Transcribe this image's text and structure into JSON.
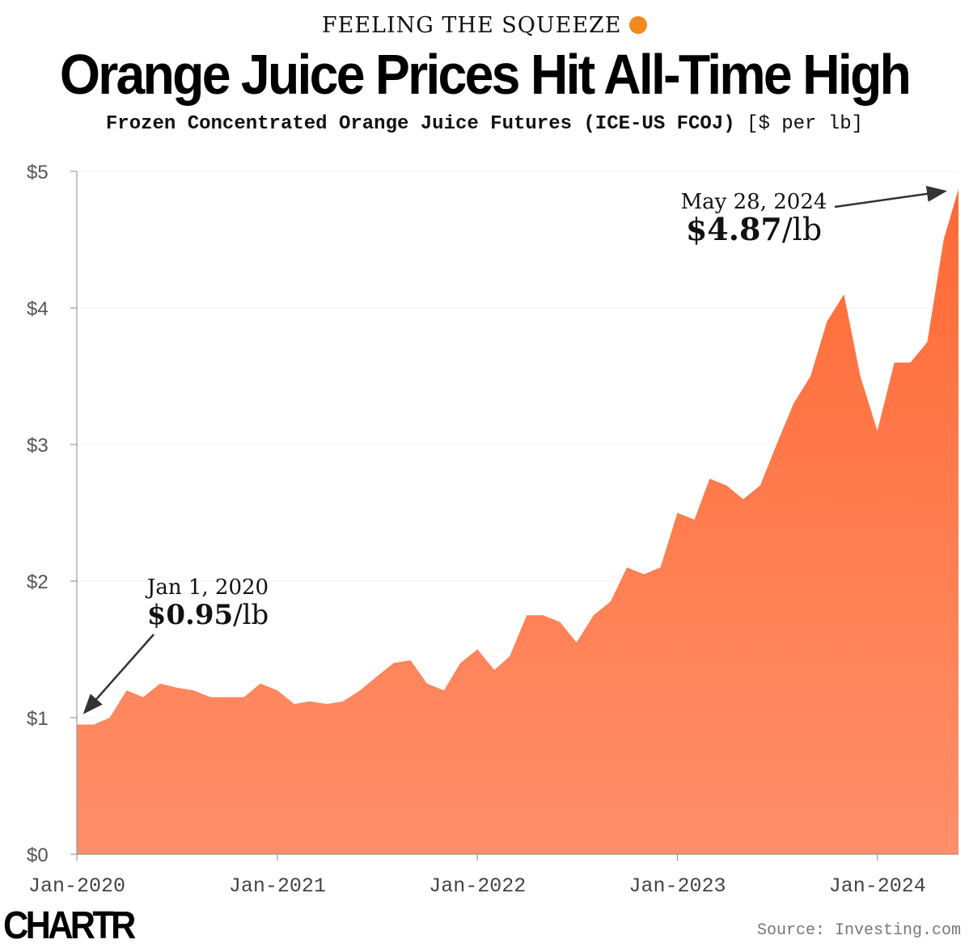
{
  "header": {
    "kicker": "FEELING THE SQUEEZE",
    "kicker_icon": "orange-emoji",
    "title": "Orange Juice Prices Hit All-Time High",
    "subtitle": "Frozen Concentrated Orange Juice Futures (ICE-US FCOJ)",
    "unit": "[$ per lb]"
  },
  "footer": {
    "logo": "CHARTR",
    "source": "Source: Investing.com"
  },
  "chart_data": {
    "type": "area",
    "xlabel": "",
    "ylabel": "",
    "ylim": [
      0,
      5
    ],
    "xlim": [
      "2020-01-01",
      "2024-05-28"
    ],
    "yticks": [
      0,
      1,
      2,
      3,
      4,
      5
    ],
    "ytick_labels": [
      "$0",
      "$1",
      "$2",
      "$3",
      "$4",
      "$5"
    ],
    "xtick_dates": [
      "2020-01-01",
      "2021-01-01",
      "2022-01-01",
      "2023-01-01",
      "2024-01-01"
    ],
    "xtick_labels": [
      "Jan-2020",
      "Jan-2021",
      "Jan-2022",
      "Jan-2023",
      "Jan-2024"
    ],
    "grid": true,
    "fill_color_top": "#ff6a35",
    "fill_color_bottom": "#ff8f6a",
    "series": [
      {
        "x": [
          "2020-01-01",
          "2020-02-01",
          "2020-03-01",
          "2020-04-01",
          "2020-05-01",
          "2020-06-01",
          "2020-07-01",
          "2020-08-01",
          "2020-09-01",
          "2020-10-01",
          "2020-11-01",
          "2020-12-01",
          "2021-01-01",
          "2021-02-01",
          "2021-03-01",
          "2021-04-01",
          "2021-05-01",
          "2021-06-01",
          "2021-07-01",
          "2021-08-01",
          "2021-09-01",
          "2021-10-01",
          "2021-11-01",
          "2021-12-01",
          "2022-01-01",
          "2022-02-01",
          "2022-03-01",
          "2022-04-01",
          "2022-05-01",
          "2022-06-01",
          "2022-07-01",
          "2022-08-01",
          "2022-09-01",
          "2022-10-01",
          "2022-11-01",
          "2022-12-01",
          "2023-01-01",
          "2023-02-01",
          "2023-03-01",
          "2023-04-01",
          "2023-05-01",
          "2023-06-01",
          "2023-07-01",
          "2023-08-01",
          "2023-09-01",
          "2023-10-01",
          "2023-11-01",
          "2023-12-01",
          "2024-01-01",
          "2024-02-01",
          "2024-03-01",
          "2024-04-01",
          "2024-05-01",
          "2024-05-28"
        ],
        "values": [
          0.95,
          0.95,
          1.0,
          1.2,
          1.15,
          1.25,
          1.22,
          1.2,
          1.15,
          1.15,
          1.15,
          1.25,
          1.2,
          1.1,
          1.12,
          1.1,
          1.12,
          1.2,
          1.3,
          1.4,
          1.42,
          1.25,
          1.2,
          1.4,
          1.5,
          1.35,
          1.45,
          1.75,
          1.75,
          1.7,
          1.55,
          1.75,
          1.85,
          2.1,
          2.05,
          2.1,
          2.5,
          2.45,
          2.75,
          2.7,
          2.6,
          2.7,
          3.0,
          3.3,
          3.5,
          3.9,
          4.1,
          3.5,
          3.1,
          3.6,
          3.6,
          3.75,
          4.5,
          4.87
        ]
      }
    ],
    "annotations": [
      {
        "date": "2020-01-01",
        "label": "Jan 1, 2020",
        "value_label": "$0.95",
        "unit": "/lb"
      },
      {
        "date": "2024-05-28",
        "label": "May 28, 2024",
        "value_label": "$4.87",
        "unit": "/lb"
      }
    ]
  }
}
